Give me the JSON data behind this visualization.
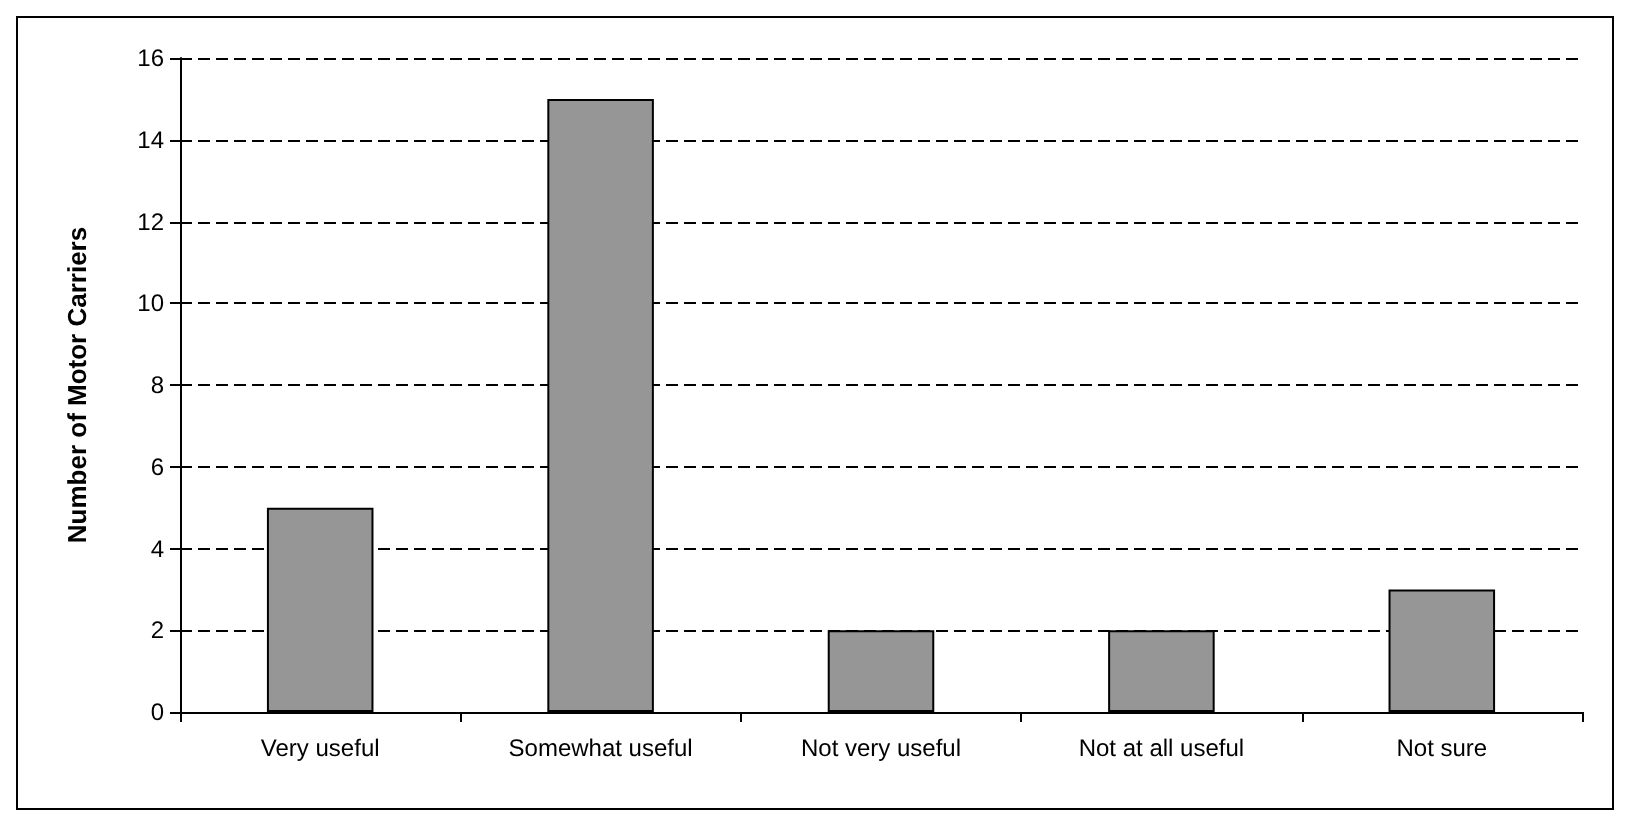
{
  "chart_data": {
    "type": "bar",
    "ylabel": "Number of Motor Carriers",
    "categories": [
      "Very useful",
      "Somewhat useful",
      "Not very useful",
      "Not at all useful",
      "Not sure"
    ],
    "values": [
      5,
      15,
      2,
      2,
      3
    ],
    "color": "#969696",
    "ylim": [
      0,
      16
    ],
    "yticks": [
      0,
      2,
      4,
      6,
      8,
      10,
      12,
      14,
      16
    ],
    "grid": "y"
  }
}
